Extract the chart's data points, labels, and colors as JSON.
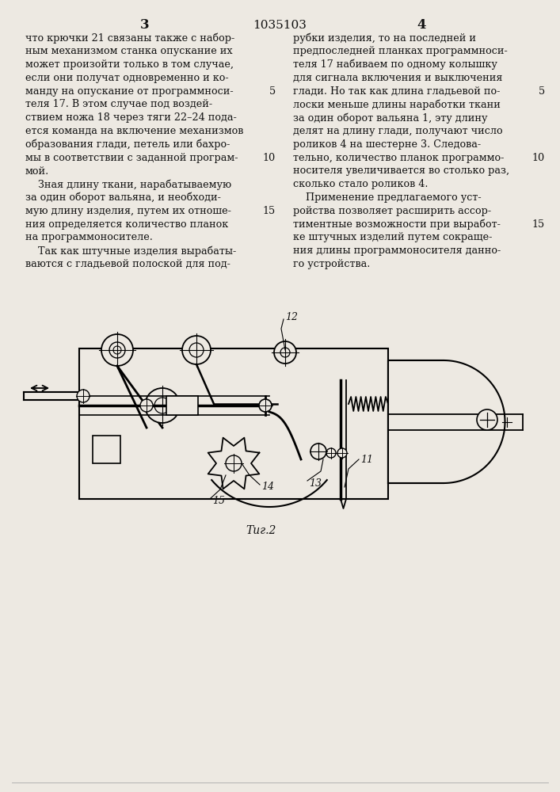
{
  "page_number_left": "3",
  "patent_number": "1035103",
  "page_number_right": "4",
  "col_left_lines": [
    "что крючки 21 связаны также с набор-",
    "ным механизмом станка опускание их",
    "может произойти только в том случае,",
    "если они получат одновременно и ко-",
    "манду на опускание от программноси-",
    "теля 17. В этом случае под воздей-",
    "ствием ножа 18 через тяги 22–24 пода-",
    "ется команда на включение механизмов",
    "образования глади, петель или бахро-",
    "мы в соответствии с заданной програм-",
    "мой.",
    "    Зная длину ткани, нарабатываемую",
    "за один оборот вальяна, и необходи-",
    "мую длину изделия, путем их отноше-",
    "ния определяется количество планок",
    "на программоносителе.",
    "    Так как штучные изделия вырабаты-",
    "ваются с гладьевой полоской для под-"
  ],
  "col_left_linenos": {
    "4": "5",
    "9": "10",
    "13": "15"
  },
  "col_right_lines": [
    "рубки изделия, то на последней и",
    "предпоследней планках программноси-",
    "теля 17 набиваем по одному колышку",
    "для сигнала включения и выключения",
    "глади. Но так как длина гладьевой по-",
    "лоски меньше длины наработки ткани",
    "за один оборот вальяна 1, эту длину",
    "делят на длину глади, получают число",
    "роликов 4 на шестерне 3. Следова-",
    "тельно, количество планок программо-",
    "носителя увеличивается во столько раз,",
    "сколько стало роликов 4.",
    "    Применение предлагаемого уст-",
    "ройства позволяет расширить ассор-",
    "тиментные возможности при выработ-",
    "ке штучных изделий путем сокраще-",
    "ния длины программоносителя данно-",
    "го устройства."
  ],
  "col_right_linenos": {
    "4": "5",
    "9": "10",
    "14": "15"
  },
  "fig_label": "Τиг.2",
  "bg_color": "#ede9e2",
  "text_color": "#111111"
}
